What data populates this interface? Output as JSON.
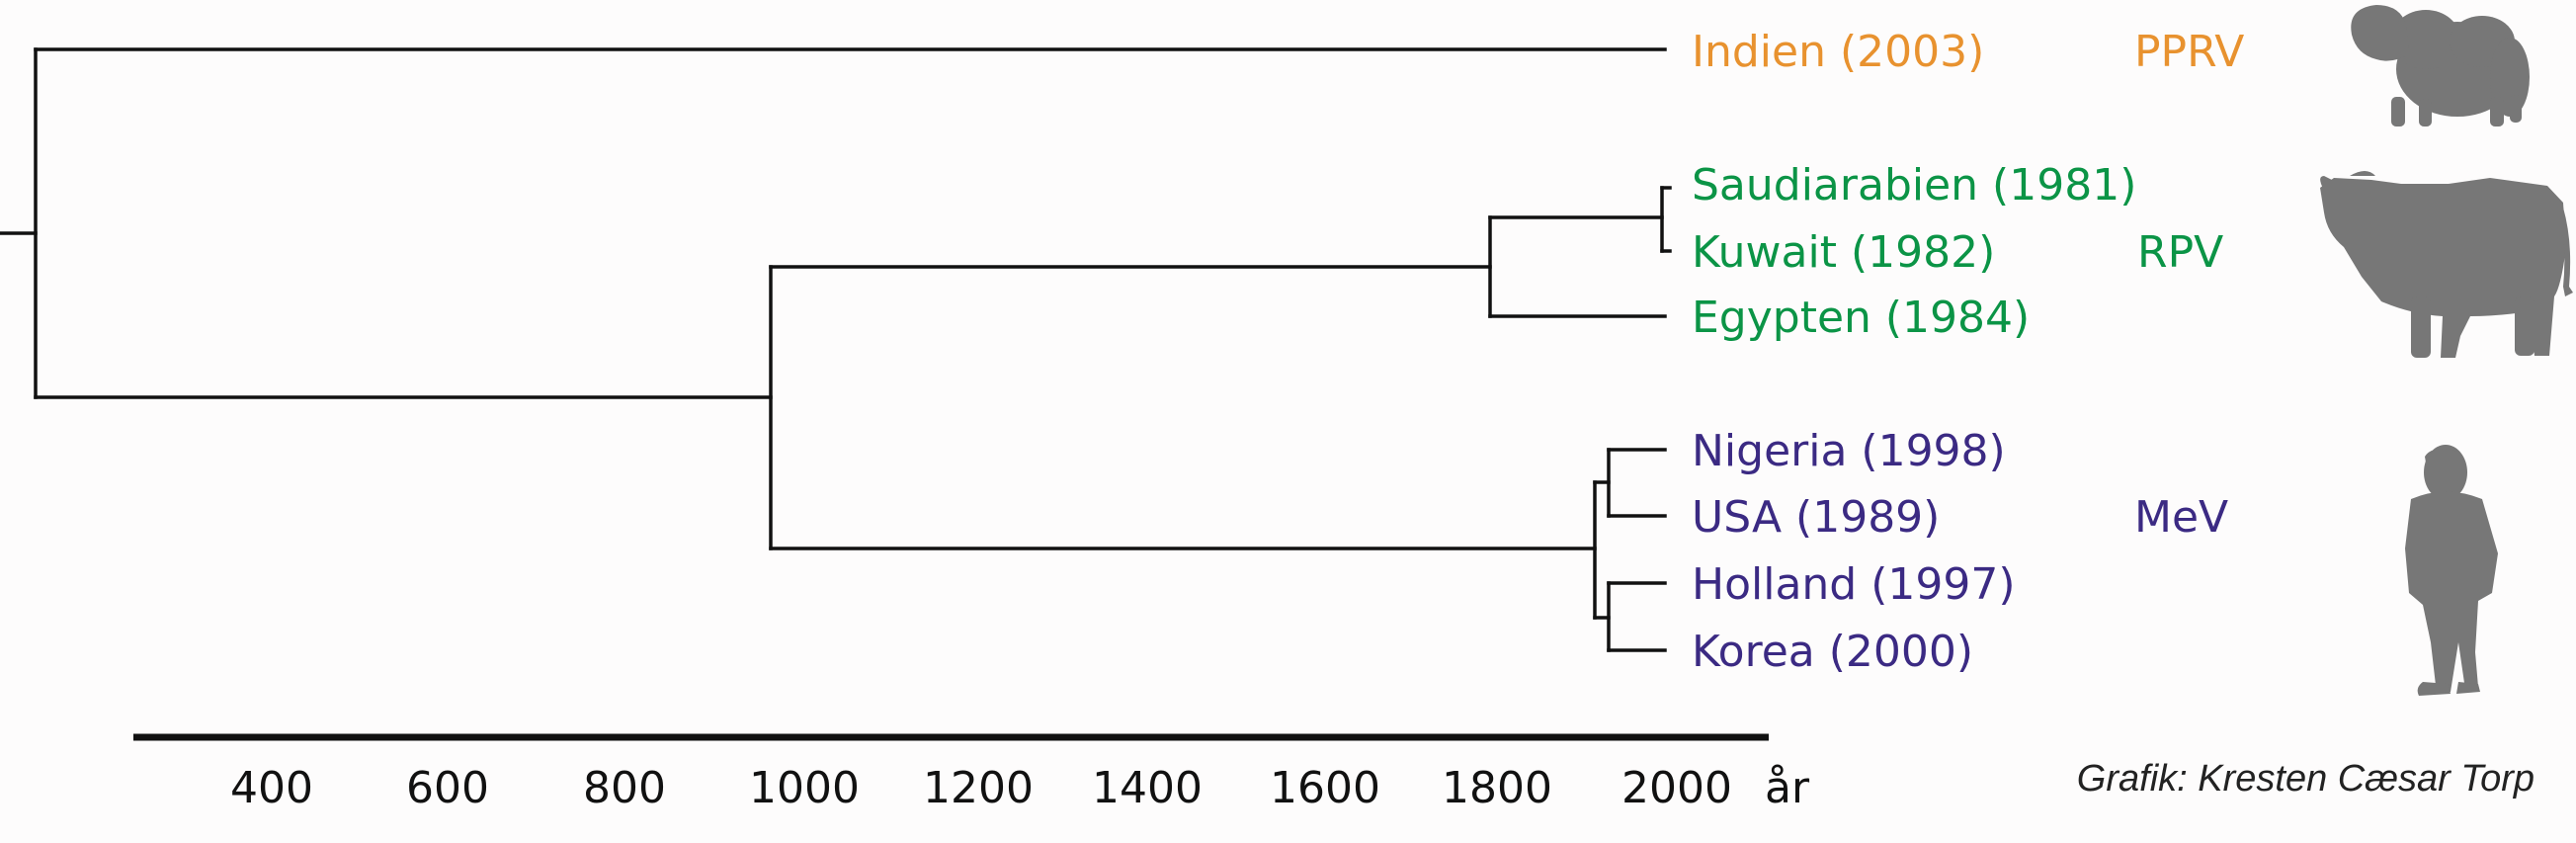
{
  "colors": {
    "pprv": "#e8922f",
    "rpv": "#0b9446",
    "mev": "#3b2a83",
    "line": "#111111",
    "animal": "#777777"
  },
  "tree": {
    "taxa": [
      {
        "id": "indien",
        "label": "Indien (2003)",
        "group": "pprv"
      },
      {
        "id": "saudiarabien",
        "label": "Saudiarabien (1981)",
        "group": "rpv"
      },
      {
        "id": "kuwait",
        "label": "Kuwait (1982)",
        "group": "rpv"
      },
      {
        "id": "egypten",
        "label": "Egypten (1984)",
        "group": "rpv"
      },
      {
        "id": "nigeria",
        "label": "Nigeria (1998)",
        "group": "mev"
      },
      {
        "id": "usa",
        "label": "USA (1989)",
        "group": "mev"
      },
      {
        "id": "holland",
        "label": "Holland (1997)",
        "group": "mev"
      },
      {
        "id": "korea",
        "label": "Korea (2000)",
        "group": "mev"
      }
    ],
    "groups": [
      {
        "id": "pprv",
        "label": "PPRV",
        "icon": "sheep-icon"
      },
      {
        "id": "rpv",
        "label": "RPV",
        "icon": "cow-icon"
      },
      {
        "id": "mev",
        "label": "MeV",
        "icon": "human-icon"
      }
    ]
  },
  "axis": {
    "ticks": [
      "400",
      "600",
      "800",
      "1000",
      "1200",
      "1400",
      "1600",
      "1800",
      "2000"
    ],
    "unit": "år"
  },
  "credit": "Grafik: Kresten Cæsar Torp"
}
